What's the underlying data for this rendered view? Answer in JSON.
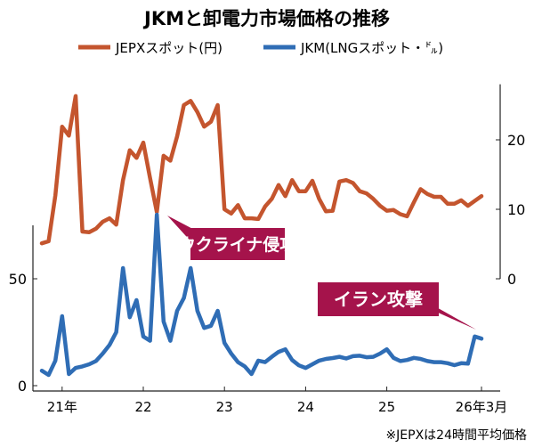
{
  "chart_data": {
    "type": "line",
    "title": "JKMと卸電力市場価格の推移",
    "x_start": "2020-10",
    "x_step": "month",
    "x_tick_labels": [
      "21年",
      "22",
      "23",
      "24",
      "25",
      "26年3月"
    ],
    "x_ticks": [
      "2021-01",
      "2022-01",
      "2023-01",
      "2024-01",
      "2025-01",
      "2026-03"
    ],
    "y_left": {
      "ticks": [
        0,
        50
      ],
      "range": [
        0,
        75
      ],
      "series": "JKM(LNGスポット・㌦)"
    },
    "y_right": {
      "ticks": [
        0,
        10,
        20
      ],
      "range": [
        0,
        28
      ],
      "series": "JEPXスポット(円)"
    },
    "legend_position": "top",
    "grid": false,
    "series": [
      {
        "name": "JEPXスポット(円)",
        "axis": "right",
        "color": "#c4552e",
        "values": [
          5.1,
          5.4,
          12,
          21.9,
          20.6,
          26.3,
          6.8,
          6.7,
          7.2,
          8.2,
          8.7,
          7.8,
          14.2,
          18.5,
          17.4,
          19.6,
          14.5,
          9.6,
          17.7,
          17.0,
          20.5,
          25.0,
          25.6,
          24.0,
          21.9,
          22.6,
          25.0,
          10.0,
          9.4,
          10.6,
          8.7,
          8.7,
          8.6,
          10.4,
          11.5,
          13.5,
          11.9,
          14.2,
          12.6,
          12.6,
          14.1,
          11.5,
          9.7,
          9.8,
          14.0,
          14.2,
          13.8,
          12.6,
          12.3,
          11.5,
          10.5,
          9.8,
          9.9,
          9.3,
          9.0,
          11.0,
          12.9,
          12.2,
          11.8,
          11.8,
          10.8,
          10.8,
          11.3,
          10.5,
          11.2,
          11.9
        ]
      },
      {
        "name": "JKM(LNGスポット・㌦)",
        "axis": "left",
        "color": "#2f6db5",
        "values": [
          7,
          5,
          11.7,
          32.5,
          5.4,
          8.3,
          9,
          10,
          11.5,
          15,
          19,
          25,
          55,
          32,
          40,
          23,
          21,
          80,
          30,
          21,
          35,
          41,
          55,
          35,
          27,
          28,
          35,
          20,
          15,
          11,
          9,
          5.4,
          11.7,
          11,
          13.5,
          15.8,
          17,
          12,
          9.5,
          8.3,
          10,
          11.7,
          12.5,
          12.9,
          13.5,
          12.7,
          13.8,
          14,
          13.3,
          13.5,
          15,
          17,
          13,
          11.5,
          12,
          13,
          12.5,
          11.5,
          11,
          11,
          10.5,
          9.6,
          10.5,
          10.3,
          23,
          22
        ]
      }
    ],
    "annotations": [
      {
        "text": "ウクライナ侵攻",
        "target": "2022-03"
      },
      {
        "text": "イラン攻撃",
        "target": "2026-02"
      }
    ],
    "footnote": "※JEPXは24時間平均価格"
  },
  "colors": {
    "jepx": "#c4552e",
    "jkm": "#2f6db5",
    "callout": "#a5134b"
  }
}
